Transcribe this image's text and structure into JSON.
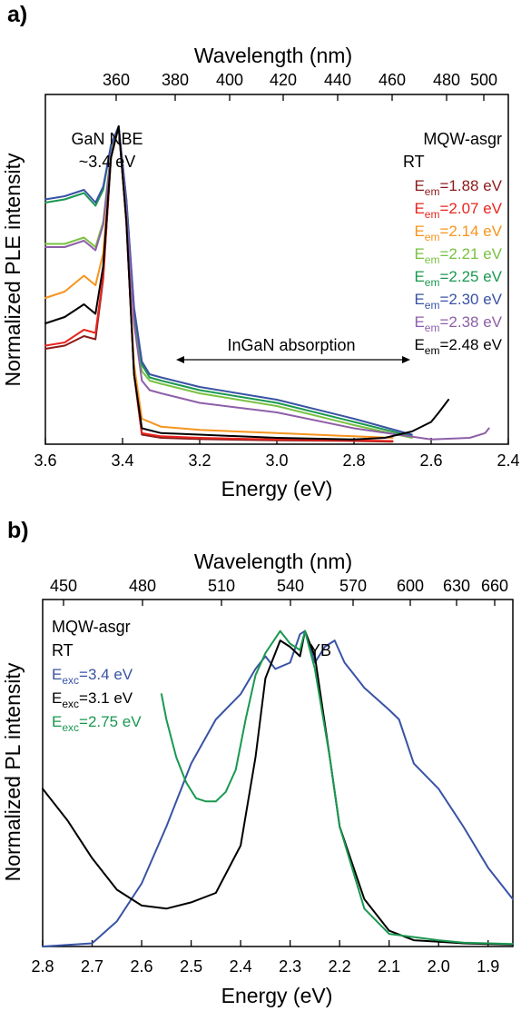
{
  "chart_data": [
    {
      "panel_label": "a)",
      "type": "line",
      "xlabel": "Energy (eV)",
      "ylabel": "Normalized PLE intensity",
      "x2label": "Wavelength (nm)",
      "xlim": [
        3.6,
        2.4
      ],
      "ylim": [
        0,
        1.1
      ],
      "x_ticks": [
        "3.6",
        "3.4",
        "3.2",
        "3.0",
        "2.8",
        "2.6",
        "2.4"
      ],
      "x2_ticks": [
        "360",
        "380",
        "400",
        "420",
        "440",
        "460",
        "480",
        "500"
      ],
      "annotations": {
        "nbe_line1": "GaN NBE",
        "nbe_line2": "~3.4 eV",
        "sample": "MQW-asgr",
        "condition": "RT",
        "absorption": "InGaN absorption"
      },
      "series": [
        {
          "label_main": "E",
          "label_sub": "em",
          "label_rest": "=1.88 eV",
          "color": "#8b1a1a",
          "x": [
            3.6,
            3.55,
            3.5,
            3.47,
            3.45,
            3.43,
            3.41,
            3.39,
            3.37,
            3.35,
            3.3,
            3.2,
            3.0,
            2.8,
            2.7
          ],
          "y": [
            0.3,
            0.31,
            0.34,
            0.33,
            0.52,
            0.9,
            1.0,
            0.7,
            0.22,
            0.03,
            0.02,
            0.016,
            0.012,
            0.01,
            0.008
          ]
        },
        {
          "label_main": "E",
          "label_sub": "em",
          "label_rest": "=2.07 eV",
          "color": "#e8251e",
          "x": [
            3.6,
            3.55,
            3.5,
            3.47,
            3.45,
            3.43,
            3.41,
            3.39,
            3.37,
            3.35,
            3.3,
            3.2,
            3.0,
            2.8,
            2.7
          ],
          "y": [
            0.31,
            0.32,
            0.36,
            0.35,
            0.53,
            0.9,
            1.0,
            0.7,
            0.22,
            0.035,
            0.025,
            0.02,
            0.015,
            0.012,
            0.01
          ]
        },
        {
          "label_main": "E",
          "label_sub": "em",
          "label_rest": "=2.14 eV",
          "color": "#f7941d",
          "x": [
            3.6,
            3.55,
            3.5,
            3.47,
            3.45,
            3.43,
            3.41,
            3.39,
            3.37,
            3.35,
            3.3,
            3.2,
            3.0,
            2.8,
            2.7
          ],
          "y": [
            0.46,
            0.48,
            0.53,
            0.5,
            0.6,
            0.9,
            1.0,
            0.7,
            0.25,
            0.08,
            0.055,
            0.045,
            0.035,
            0.025,
            0.02
          ]
        },
        {
          "label_main": "E",
          "label_sub": "em",
          "label_rest": "=2.21 eV",
          "color": "#7ac142",
          "x": [
            3.6,
            3.55,
            3.5,
            3.47,
            3.45,
            3.43,
            3.41,
            3.39,
            3.37,
            3.35,
            3.33,
            3.3,
            3.2,
            3.0,
            2.8,
            2.65
          ],
          "y": [
            0.63,
            0.63,
            0.65,
            0.62,
            0.7,
            0.92,
            1.0,
            0.75,
            0.4,
            0.23,
            0.2,
            0.19,
            0.16,
            0.12,
            0.06,
            0.02
          ]
        },
        {
          "label_main": "E",
          "label_sub": "em",
          "label_rest": "=2.25 eV",
          "color": "#1a9850",
          "x": [
            3.6,
            3.55,
            3.5,
            3.47,
            3.45,
            3.43,
            3.41,
            3.39,
            3.37,
            3.35,
            3.33,
            3.3,
            3.2,
            3.0,
            2.8,
            2.65
          ],
          "y": [
            0.76,
            0.77,
            0.79,
            0.75,
            0.8,
            0.94,
            1.0,
            0.77,
            0.42,
            0.25,
            0.21,
            0.2,
            0.17,
            0.13,
            0.07,
            0.025
          ]
        },
        {
          "label_main": "E",
          "label_sub": "em",
          "label_rest": "=2.30 eV",
          "color": "#3953a4",
          "x": [
            3.6,
            3.55,
            3.5,
            3.47,
            3.45,
            3.43,
            3.41,
            3.39,
            3.37,
            3.35,
            3.33,
            3.3,
            3.2,
            3.0,
            2.8,
            2.65
          ],
          "y": [
            0.77,
            0.78,
            0.8,
            0.76,
            0.81,
            0.94,
            1.0,
            0.77,
            0.43,
            0.26,
            0.22,
            0.21,
            0.18,
            0.14,
            0.08,
            0.03
          ]
        },
        {
          "label_main": "E",
          "label_sub": "em",
          "label_rest": "=2.38 eV",
          "color": "#8e5fa8",
          "x": [
            3.6,
            3.55,
            3.5,
            3.47,
            3.45,
            3.43,
            3.41,
            3.39,
            3.37,
            3.35,
            3.33,
            3.3,
            3.2,
            3.0,
            2.8,
            2.6,
            2.5,
            2.46,
            2.45
          ],
          "y": [
            0.62,
            0.62,
            0.64,
            0.61,
            0.69,
            0.91,
            1.0,
            0.74,
            0.38,
            0.2,
            0.17,
            0.16,
            0.13,
            0.1,
            0.05,
            0.015,
            0.02,
            0.035,
            0.05
          ]
        },
        {
          "label_main": "E",
          "label_sub": "em",
          "label_rest": "=2.48 eV",
          "color": "#000000",
          "x": [
            3.6,
            3.55,
            3.5,
            3.47,
            3.45,
            3.43,
            3.41,
            3.39,
            3.37,
            3.35,
            3.3,
            3.2,
            3.0,
            2.8,
            2.72,
            2.65,
            2.6,
            2.58,
            2.555
          ],
          "y": [
            0.38,
            0.4,
            0.44,
            0.41,
            0.56,
            0.9,
            1.0,
            0.7,
            0.22,
            0.05,
            0.035,
            0.03,
            0.02,
            0.015,
            0.02,
            0.04,
            0.07,
            0.1,
            0.14
          ]
        }
      ]
    },
    {
      "panel_label": "b)",
      "type": "line",
      "xlabel": "Energy (eV)",
      "ylabel": "Normalized PL intensity",
      "x2label": "Wavelength (nm)",
      "xlim": [
        2.8,
        1.85
      ],
      "ylim": [
        0,
        1.1
      ],
      "x_ticks": [
        "2.8",
        "2.7",
        "2.6",
        "2.5",
        "2.4",
        "2.3",
        "2.2",
        "2.1",
        "2.0",
        "1.9"
      ],
      "x2_ticks": [
        "450",
        "480",
        "510",
        "540",
        "570",
        "600",
        "630",
        "660"
      ],
      "annotations": {
        "sample": "MQW-asgr",
        "condition": "RT",
        "peak": "YB"
      },
      "series": [
        {
          "label_main": "E",
          "label_sub": "exc",
          "label_rest": "=3.4 eV",
          "color": "#3953a4",
          "x": [
            2.8,
            2.7,
            2.65,
            2.6,
            2.55,
            2.5,
            2.45,
            2.4,
            2.37,
            2.35,
            2.33,
            2.3,
            2.28,
            2.27,
            2.25,
            2.23,
            2.21,
            2.19,
            2.17,
            2.15,
            2.1,
            2.08,
            2.05,
            2.0,
            1.95,
            1.9,
            1.85
          ],
          "y": [
            0.0,
            0.01,
            0.08,
            0.2,
            0.38,
            0.58,
            0.72,
            0.8,
            0.88,
            0.92,
            0.88,
            0.9,
            0.99,
            1.0,
            0.9,
            0.95,
            0.97,
            0.9,
            0.86,
            0.82,
            0.75,
            0.72,
            0.58,
            0.5,
            0.38,
            0.25,
            0.15
          ]
        },
        {
          "label_main": "E",
          "label_sub": "exc",
          "label_rest": "=3.1 eV",
          "color": "#000000",
          "x": [
            2.8,
            2.75,
            2.7,
            2.65,
            2.6,
            2.55,
            2.5,
            2.45,
            2.4,
            2.37,
            2.35,
            2.32,
            2.3,
            2.28,
            2.27,
            2.25,
            2.22,
            2.2,
            2.15,
            2.1,
            2.05,
            2.0,
            1.95,
            1.9,
            1.85
          ],
          "y": [
            0.5,
            0.4,
            0.28,
            0.18,
            0.13,
            0.12,
            0.14,
            0.17,
            0.32,
            0.6,
            0.85,
            0.97,
            0.95,
            0.92,
            1.0,
            0.92,
            0.6,
            0.38,
            0.15,
            0.05,
            0.02,
            0.015,
            0.01,
            0.008,
            0.006
          ]
        },
        {
          "label_main": "E",
          "label_sub": "exc",
          "label_rest": "=2.75 eV",
          "color": "#1a9850",
          "x": [
            2.56,
            2.55,
            2.53,
            2.51,
            2.49,
            2.47,
            2.45,
            2.43,
            2.41,
            2.39,
            2.37,
            2.35,
            2.32,
            2.3,
            2.28,
            2.27,
            2.25,
            2.22,
            2.2,
            2.15,
            2.1,
            2.05,
            2.0,
            1.95,
            1.9,
            1.85
          ],
          "y": [
            0.8,
            0.72,
            0.6,
            0.52,
            0.47,
            0.46,
            0.46,
            0.49,
            0.56,
            0.72,
            0.86,
            0.93,
            1.0,
            0.96,
            0.94,
            1.0,
            0.88,
            0.6,
            0.38,
            0.12,
            0.04,
            0.03,
            0.02,
            0.012,
            0.01,
            0.008
          ]
        }
      ]
    }
  ]
}
